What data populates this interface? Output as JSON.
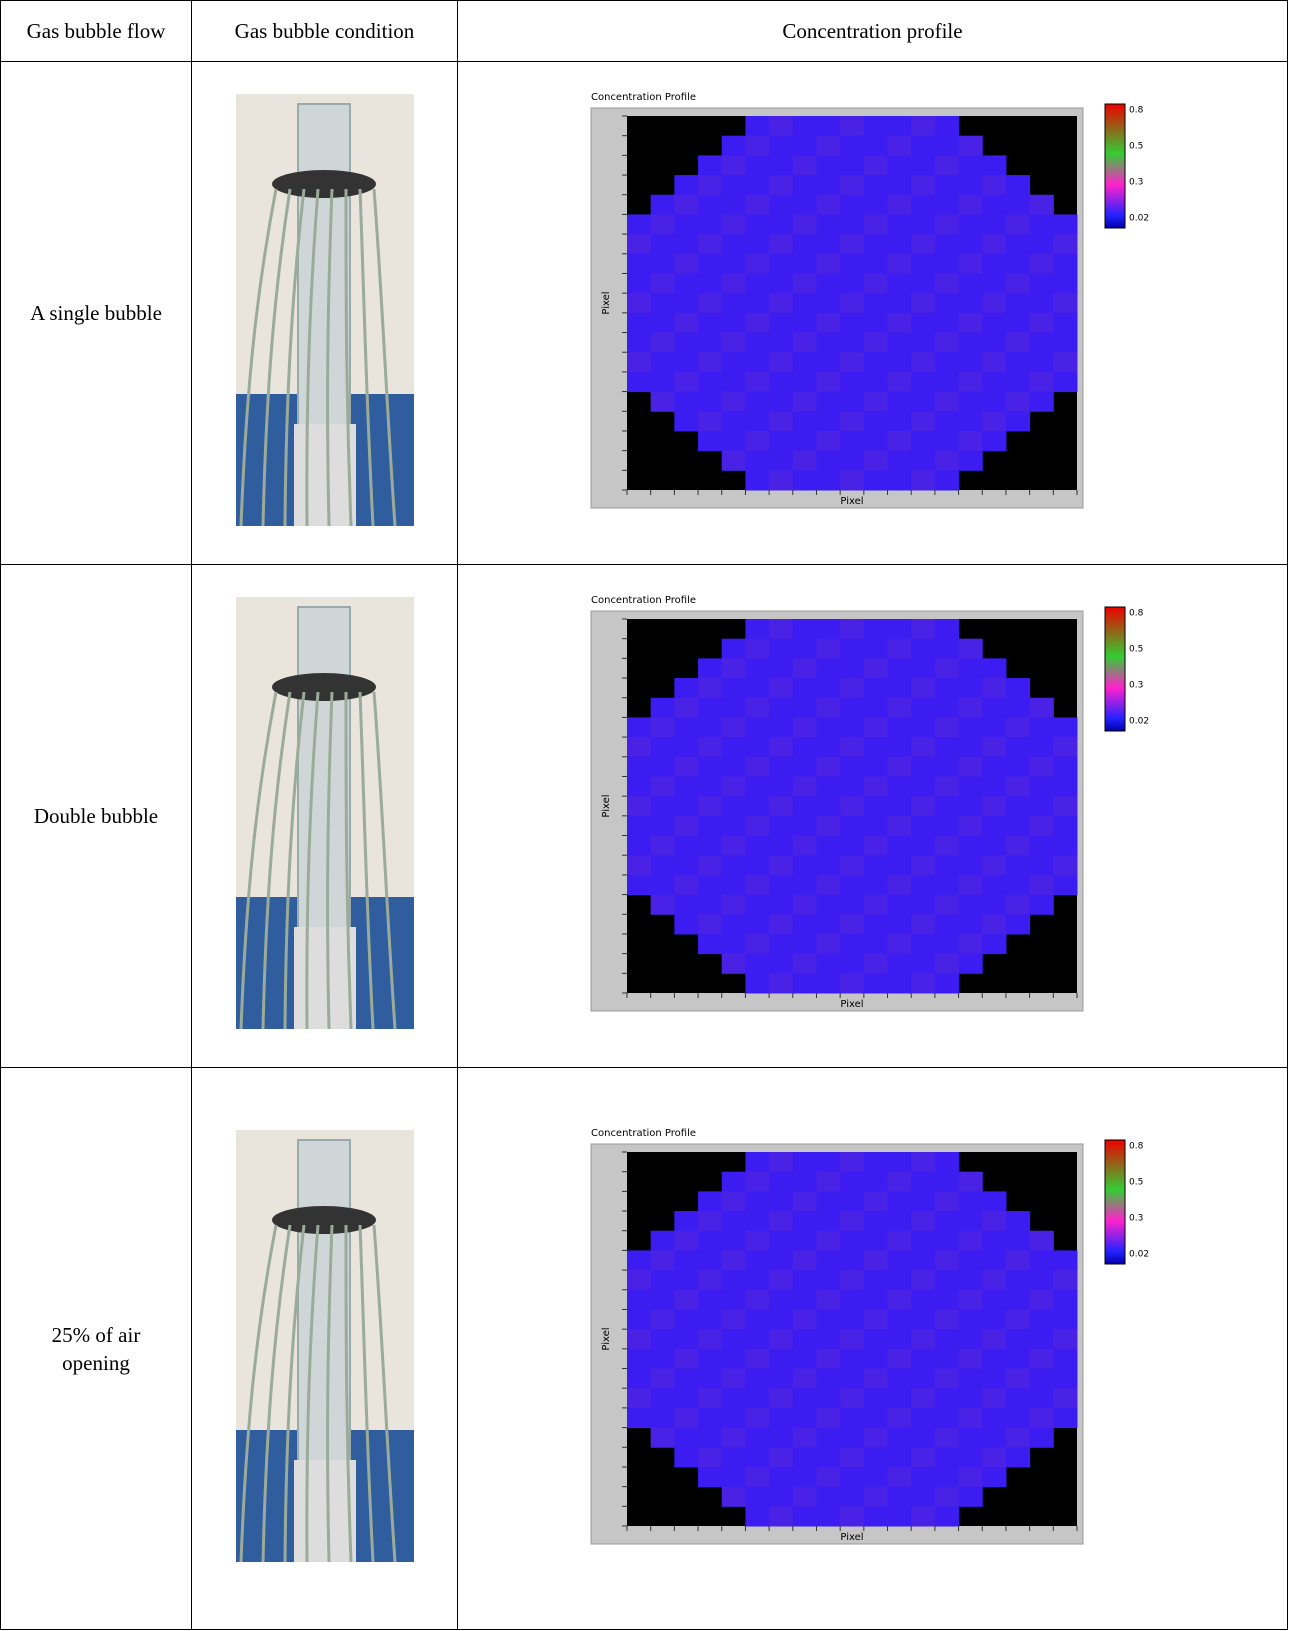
{
  "table": {
    "header": [
      "Gas bubble flow",
      "Gas bubble condition",
      "Concentration profile"
    ],
    "rows": [
      {
        "flow": "A single bubble",
        "profile": {
          "title": "Concentration Profile",
          "x_label": "Pixel",
          "y_label": "Pixel",
          "scale": [
            "0.8",
            "0.5",
            "0.3",
            "0.02"
          ]
        }
      },
      {
        "flow": "Double bubble",
        "profile": {
          "title": "Concentration Profile",
          "x_label": "Pixel",
          "y_label": "Pixel",
          "scale": [
            "0.8",
            "0.5",
            "0.3",
            "0.02"
          ]
        }
      },
      {
        "flow": "25% of air opening",
        "profile": {
          "title": "Concentration Profile",
          "x_label": "Pixel",
          "y_label": "Pixel",
          "scale": [
            "0.8",
            "0.5",
            "0.3",
            "0.02"
          ]
        }
      }
    ]
  }
}
